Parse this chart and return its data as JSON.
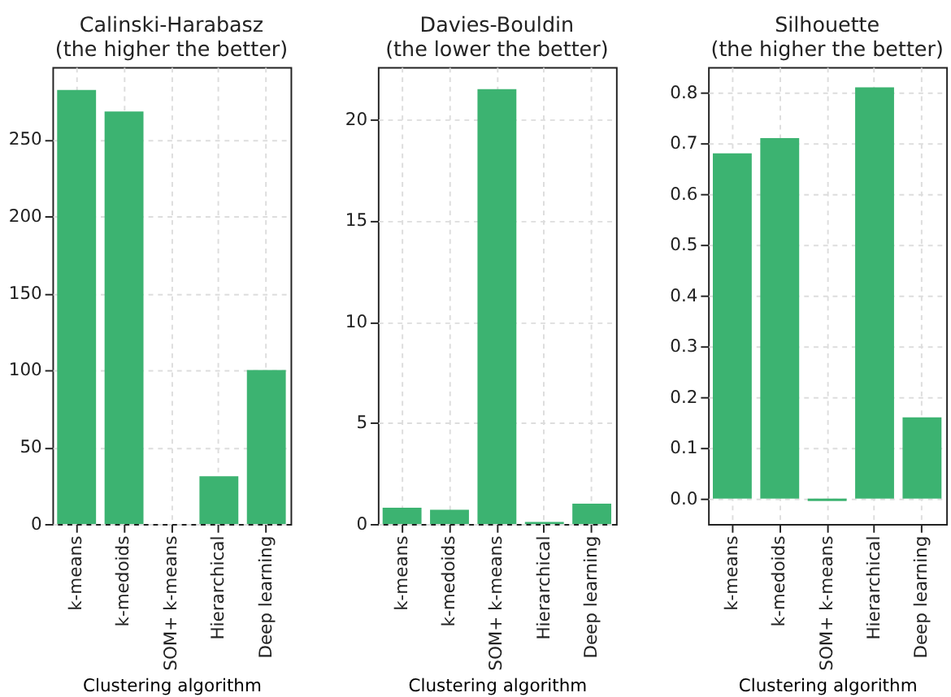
{
  "chart_data": [
    {
      "type": "bar",
      "title": "Calinski-Harabasz\n(the higher the better)",
      "xlabel": "Clustering algorithm",
      "categories": [
        "k-means",
        "k-medoids",
        "SOM+ k-means",
        "Hierarchical",
        "Deep learning"
      ],
      "values": [
        282,
        268,
        0,
        31,
        100
      ],
      "color": "#3cb371",
      "ylim": [
        0,
        297
      ],
      "yticks": [
        0,
        50,
        100,
        150,
        200,
        250
      ],
      "grid": true
    },
    {
      "type": "bar",
      "title": "Davies-Bouldin\n(the lower the better)",
      "xlabel": "Clustering algorithm",
      "categories": [
        "k-means",
        "k-medoids",
        "SOM+ k-means",
        "Hierarchical",
        "Deep learning"
      ],
      "values": [
        0.8,
        0.7,
        21.5,
        0.1,
        1.0
      ],
      "color": "#3cb371",
      "ylim": [
        0,
        22.6
      ],
      "yticks": [
        0,
        5,
        10,
        15,
        20
      ],
      "grid": true
    },
    {
      "type": "bar",
      "title": "Silhouette\n(the higher the better)",
      "xlabel": "Clustering algorithm",
      "categories": [
        "k-means",
        "k-medoids",
        "SOM+ k-means",
        "Hierarchical",
        "Deep learning"
      ],
      "values": [
        0.68,
        0.71,
        -0.005,
        0.81,
        0.16
      ],
      "color": "#3cb371",
      "ylim": [
        -0.05,
        0.85
      ],
      "yticks": [
        {
          "value": 0,
          "label": "0.0"
        },
        0.1,
        0.2,
        0.3,
        0.4,
        0.5,
        0.6,
        0.7,
        0.8
      ],
      "grid": true
    }
  ]
}
